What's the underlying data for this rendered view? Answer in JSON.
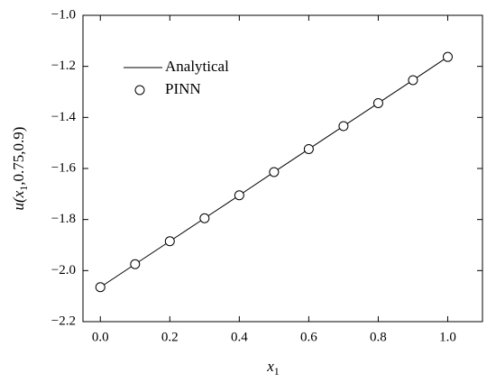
{
  "chart_data": {
    "type": "line",
    "xlabel": [
      "x",
      "1"
    ],
    "ylabel": [
      "u",
      "(x",
      "1",
      ",0.75,0.9)"
    ],
    "x": [
      0,
      0.1,
      0.2,
      0.3,
      0.4,
      0.5,
      0.6,
      0.7,
      0.8,
      0.9,
      1
    ],
    "series": [
      {
        "name": "Analytical",
        "color": "#000000",
        "style": "line",
        "values": [
          -2.065,
          -1.975,
          -1.885,
          -1.795,
          -1.705,
          -1.614,
          -1.524,
          -1.434,
          -1.344,
          -1.254,
          -1.163
        ]
      },
      {
        "name": "PINN",
        "color": "#000000",
        "style": "markers",
        "values": [
          -2.065,
          -1.975,
          -1.885,
          -1.795,
          -1.705,
          -1.614,
          -1.524,
          -1.434,
          -1.344,
          -1.254,
          -1.163
        ]
      }
    ],
    "xlim": [
      -0.05,
      1.1
    ],
    "ylim": [
      -2.2,
      -1.0
    ],
    "xticks": [
      {
        "value": 0,
        "label": "0.0"
      },
      0.2,
      0.4,
      0.6,
      0.8,
      {
        "value": 1,
        "label": "1.0"
      }
    ],
    "yticks": [
      {
        "value": -2.2,
        "label": "−2.2"
      },
      {
        "value": -2.0,
        "label": "−2.0"
      },
      {
        "value": -1.8,
        "label": "−1.8"
      },
      {
        "value": -1.6,
        "label": "−1.6"
      },
      {
        "value": -1.4,
        "label": "−1.4"
      },
      {
        "value": -1.2,
        "label": "−1.2"
      },
      {
        "value": -1.0,
        "label": "−1.0"
      }
    ],
    "grid": false,
    "legend": "upper-left"
  }
}
